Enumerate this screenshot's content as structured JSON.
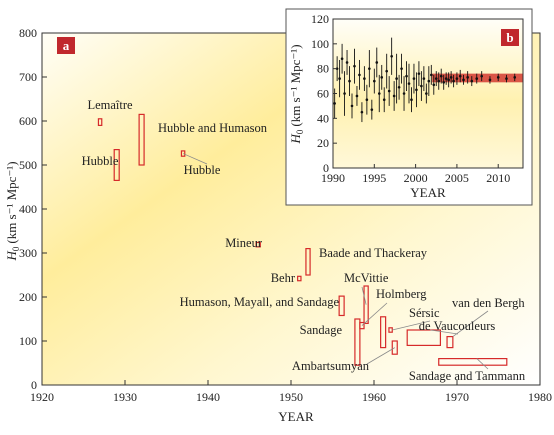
{
  "chart_data": [
    {
      "panel": "a",
      "type": "range-boxes",
      "xlabel": "YEAR",
      "ylabel_main": "H",
      "ylabel_sub": "0",
      "ylabel_unit": "(km s⁻¹ Mpc⁻¹)",
      "xlim": [
        1920,
        1980
      ],
      "ylim": [
        0,
        800
      ],
      "xticks": [
        1920,
        1930,
        1940,
        1950,
        1960,
        1970,
        1980
      ],
      "yticks": [
        0,
        100,
        200,
        300,
        400,
        500,
        600,
        700,
        800
      ],
      "estimates": [
        {
          "label": "Lemaître",
          "x": [
            1926.8,
            1927.2
          ],
          "y": [
            590,
            605
          ]
        },
        {
          "label": "Hubble",
          "x": [
            1928.7,
            1929.3
          ],
          "y": [
            465,
            535
          ]
        },
        {
          "label": "Hubble and Humason",
          "x": [
            1931.7,
            1932.3
          ],
          "y": [
            500,
            615
          ]
        },
        {
          "label": "Hubble",
          "x": [
            1936.8,
            1937.2
          ],
          "y": [
            520,
            532
          ]
        },
        {
          "label": "Mineur",
          "x": [
            1945.8,
            1946.3
          ],
          "y": [
            314,
            324
          ]
        },
        {
          "label": "Behr",
          "x": [
            1950.8,
            1951.2
          ],
          "y": [
            237,
            247
          ]
        },
        {
          "label": "Baade and Thackeray",
          "x": [
            1951.8,
            1952.3
          ],
          "y": [
            250,
            310
          ]
        },
        {
          "label": "Humason, Mayall, and Sandage",
          "x": [
            1955.8,
            1956.4
          ],
          "y": [
            158,
            202
          ]
        },
        {
          "label": "Sandage",
          "x": [
            1957.7,
            1958.3
          ],
          "y": [
            45,
            150
          ]
        },
        {
          "label": "McVittie",
          "x": [
            1958.8,
            1959.3
          ],
          "y": [
            140,
            225
          ]
        },
        {
          "label": "Holmberg",
          "x": [
            1958.3,
            1958.8
          ],
          "y": [
            128,
            142
          ]
        },
        {
          "label": "Sérsic",
          "x": [
            1960.8,
            1961.4
          ],
          "y": [
            85,
            155
          ]
        },
        {
          "label": "Ambartsumyan",
          "x": [
            1962.2,
            1962.8
          ],
          "y": [
            70,
            100
          ]
        },
        {
          "label": "de Vaucouleurs",
          "x": [
            1964.0,
            1968.0
          ],
          "y": [
            90,
            125
          ]
        },
        {
          "label": "van den Bergh",
          "x": [
            1968.8,
            1969.5
          ],
          "y": [
            85,
            110
          ]
        },
        {
          "label": "Sandage and Tammann",
          "x": [
            1967.8,
            1976.0
          ],
          "y": [
            45,
            60
          ]
        },
        {
          "label": "",
          "x": [
            1961.8,
            1962.2
          ],
          "y": [
            120,
            130
          ]
        }
      ]
    },
    {
      "panel": "b",
      "type": "scatter-errorbar",
      "xlabel": "YEAR",
      "ylabel_main": "H",
      "ylabel_sub": "0",
      "ylabel_unit": "(km s⁻¹ Mpc⁻¹)",
      "xlim": [
        1990,
        2013
      ],
      "ylim": [
        0,
        120
      ],
      "xticks": [
        1990,
        1995,
        2000,
        2005,
        2010
      ],
      "yticks": [
        0,
        20,
        40,
        60,
        80,
        100,
        120
      ],
      "band": {
        "y": [
          69,
          76
        ],
        "x": [
          2002,
          2013
        ]
      },
      "points": [
        {
          "x": 1990.2,
          "y": 52,
          "err": 12
        },
        {
          "x": 1990.5,
          "y": 80,
          "err": 10
        },
        {
          "x": 1990.8,
          "y": 72,
          "err": 15
        },
        {
          "x": 1991.1,
          "y": 88,
          "err": 12
        },
        {
          "x": 1991.4,
          "y": 60,
          "err": 18
        },
        {
          "x": 1991.7,
          "y": 85,
          "err": 10
        },
        {
          "x": 1992.0,
          "y": 70,
          "err": 12
        },
        {
          "x": 1992.3,
          "y": 50,
          "err": 10
        },
        {
          "x": 1992.6,
          "y": 82,
          "err": 14
        },
        {
          "x": 1992.9,
          "y": 58,
          "err": 8
        },
        {
          "x": 1993.2,
          "y": 75,
          "err": 12
        },
        {
          "x": 1993.5,
          "y": 45,
          "err": 8
        },
        {
          "x": 1993.8,
          "y": 72,
          "err": 10
        },
        {
          "x": 1994.1,
          "y": 55,
          "err": 12
        },
        {
          "x": 1994.4,
          "y": 80,
          "err": 15
        },
        {
          "x": 1994.7,
          "y": 47,
          "err": 8
        },
        {
          "x": 1995.0,
          "y": 70,
          "err": 10
        },
        {
          "x": 1995.3,
          "y": 85,
          "err": 12
        },
        {
          "x": 1995.6,
          "y": 60,
          "err": 15
        },
        {
          "x": 1995.9,
          "y": 73,
          "err": 10
        },
        {
          "x": 1996.2,
          "y": 55,
          "err": 10
        },
        {
          "x": 1996.5,
          "y": 78,
          "err": 14
        },
        {
          "x": 1996.8,
          "y": 62,
          "err": 12
        },
        {
          "x": 1997.1,
          "y": 90,
          "err": 15
        },
        {
          "x": 1997.4,
          "y": 58,
          "err": 12
        },
        {
          "x": 1997.7,
          "y": 72,
          "err": 20
        },
        {
          "x": 1998.0,
          "y": 65,
          "err": 10
        },
        {
          "x": 1998.3,
          "y": 80,
          "err": 12
        },
        {
          "x": 1998.6,
          "y": 60,
          "err": 14
        },
        {
          "x": 1998.9,
          "y": 74,
          "err": 12
        },
        {
          "x": 1999.2,
          "y": 68,
          "err": 16
        },
        {
          "x": 1999.5,
          "y": 55,
          "err": 10
        },
        {
          "x": 1999.8,
          "y": 72,
          "err": 12
        },
        {
          "x": 2000.1,
          "y": 63,
          "err": 14
        },
        {
          "x": 2000.4,
          "y": 76,
          "err": 10
        },
        {
          "x": 2000.7,
          "y": 66,
          "err": 12
        },
        {
          "x": 2001.0,
          "y": 72,
          "err": 10
        },
        {
          "x": 2001.3,
          "y": 60,
          "err": 8
        },
        {
          "x": 2001.6,
          "y": 70,
          "err": 12
        },
        {
          "x": 2001.9,
          "y": 75,
          "err": 8
        },
        {
          "x": 2002.2,
          "y": 67,
          "err": 8
        },
        {
          "x": 2002.5,
          "y": 72,
          "err": 6
        },
        {
          "x": 2002.8,
          "y": 70,
          "err": 7
        },
        {
          "x": 2003.1,
          "y": 74,
          "err": 6
        },
        {
          "x": 2003.4,
          "y": 69,
          "err": 6
        },
        {
          "x": 2003.7,
          "y": 72,
          "err": 5
        },
        {
          "x": 2004.0,
          "y": 71,
          "err": 6
        },
        {
          "x": 2004.3,
          "y": 73,
          "err": 5
        },
        {
          "x": 2004.6,
          "y": 70,
          "err": 5
        },
        {
          "x": 2005.0,
          "y": 72,
          "err": 5
        },
        {
          "x": 2005.4,
          "y": 74,
          "err": 5
        },
        {
          "x": 2005.8,
          "y": 71,
          "err": 4
        },
        {
          "x": 2006.3,
          "y": 73,
          "err": 5
        },
        {
          "x": 2006.8,
          "y": 70,
          "err": 4
        },
        {
          "x": 2007.4,
          "y": 72,
          "err": 4
        },
        {
          "x": 2008.0,
          "y": 74,
          "err": 4
        },
        {
          "x": 2009.0,
          "y": 71,
          "err": 3
        },
        {
          "x": 2010.0,
          "y": 73,
          "err": 3
        },
        {
          "x": 2011.0,
          "y": 72,
          "err": 3
        },
        {
          "x": 2012.0,
          "y": 73,
          "err": 3
        }
      ]
    }
  ],
  "colors": {
    "box": "#d62a2a",
    "badge": "#c0282d",
    "band": "#d43a30",
    "leader": "#8a8a8a",
    "glow_center": "#ffe88a",
    "glow_edge": "#ffffff"
  }
}
